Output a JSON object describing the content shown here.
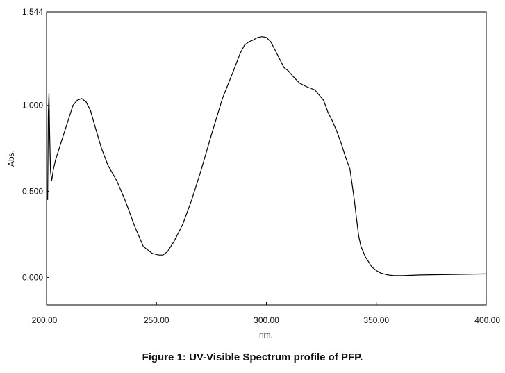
{
  "caption": "Figure 1: UV-Visible Spectrum profile of PFP.",
  "chart_data": {
    "type": "line",
    "xlabel": "nm.",
    "ylabel": "Abs.",
    "xlim": [
      200,
      400
    ],
    "ylim": [
      -0.16,
      1.544
    ],
    "x_ticks": [
      "200.00",
      "250.00",
      "300.00",
      "350.00",
      "400.00"
    ],
    "y_ticks": [
      "0.000",
      "0.500",
      "1.000",
      "1.544"
    ],
    "grid": false,
    "line_color": "#000000",
    "series": [
      {
        "x": [
          200.5,
          200.8,
          201.1,
          201.4,
          201.8,
          202.3,
          203.0,
          204.0,
          206.0,
          208.0,
          210.0,
          212.0,
          214.0,
          216.0,
          218.0,
          220.0,
          222.0,
          225.0,
          228.0,
          232.0,
          236.0,
          240.0,
          244.0,
          248.0,
          251.0,
          253.0,
          255.0,
          258.0,
          262.0,
          266.0,
          270.0,
          275.0,
          280.0,
          285.0,
          288.0,
          290.0,
          292.0,
          294.0,
          296.0,
          298.0,
          300.0,
          302.0,
          304.0,
          306.0,
          308.0,
          310.0,
          312.0,
          315.0,
          318.0,
          320.0,
          322.0,
          324.0,
          326.0,
          328.0,
          330.0,
          332.0,
          334.0,
          336.0,
          338.0,
          340.0,
          341.0,
          342.0,
          343.0,
          344.0,
          345.0,
          346.0,
          348.0,
          350.0,
          352.0,
          355.0,
          358.0,
          362.0,
          366.0,
          370.0,
          380.0,
          390.0,
          400.0
        ],
        "y": [
          0.45,
          0.95,
          1.07,
          0.85,
          0.62,
          0.56,
          0.62,
          0.68,
          0.76,
          0.84,
          0.92,
          1.0,
          1.03,
          1.04,
          1.02,
          0.97,
          0.88,
          0.75,
          0.65,
          0.56,
          0.44,
          0.3,
          0.18,
          0.14,
          0.13,
          0.13,
          0.15,
          0.21,
          0.31,
          0.45,
          0.61,
          0.83,
          1.04,
          1.2,
          1.3,
          1.35,
          1.37,
          1.38,
          1.395,
          1.4,
          1.395,
          1.37,
          1.32,
          1.27,
          1.22,
          1.2,
          1.17,
          1.13,
          1.11,
          1.1,
          1.09,
          1.06,
          1.03,
          0.96,
          0.91,
          0.85,
          0.78,
          0.7,
          0.63,
          0.45,
          0.34,
          0.24,
          0.18,
          0.15,
          0.12,
          0.1,
          0.06,
          0.04,
          0.025,
          0.015,
          0.01,
          0.01,
          0.012,
          0.014,
          0.016,
          0.018,
          0.02
        ]
      }
    ]
  }
}
